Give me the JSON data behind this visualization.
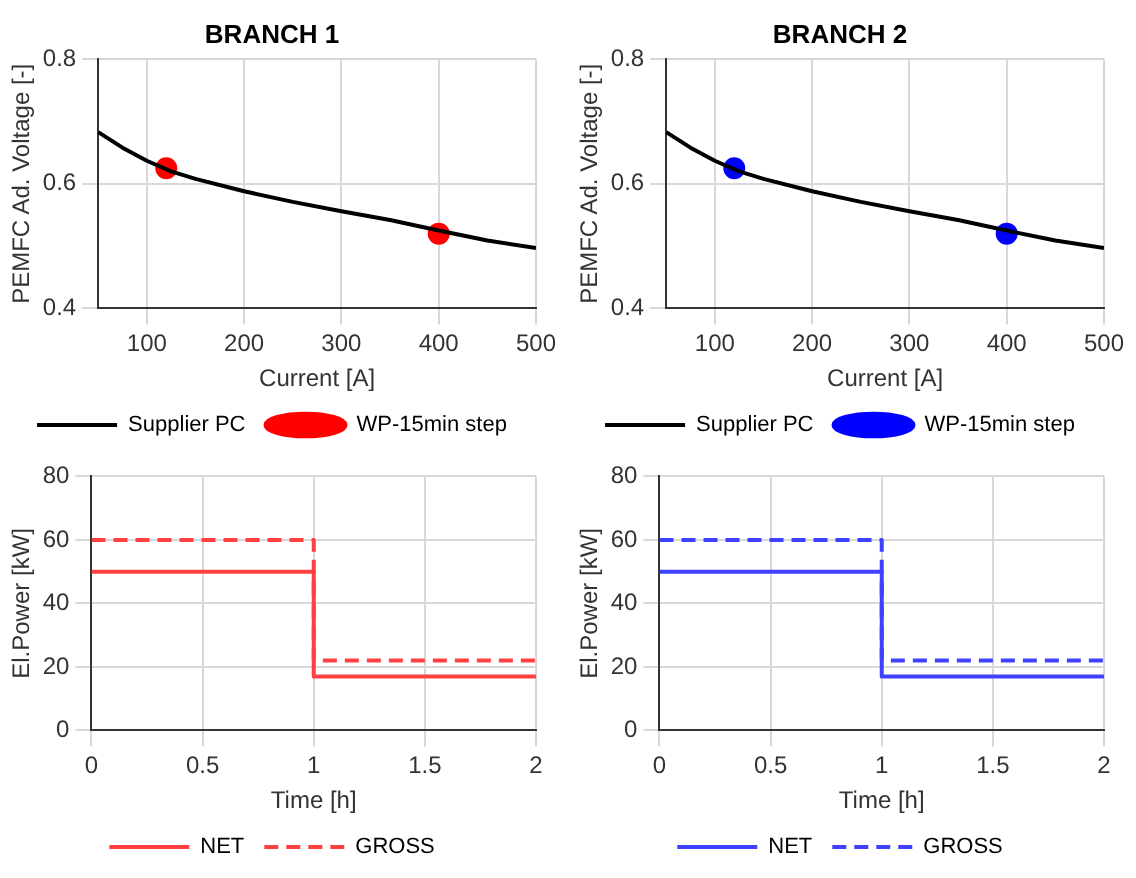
{
  "chart_data": [
    {
      "type": "line",
      "title": "BRANCH 1",
      "xlabel": "Current [A]",
      "ylabel": "PEMFC Ad. Voltage [-]",
      "xlim": [
        50,
        500
      ],
      "xticks": [
        100,
        200,
        300,
        400,
        500
      ],
      "ylim": [
        0.4,
        0.8
      ],
      "yticks": [
        0.4,
        0.6,
        0.8
      ],
      "grid": true,
      "legend": "bottom",
      "series": [
        {
          "name": "Supplier PC",
          "color": "#000000",
          "marker": "none",
          "x": [
            50,
            75,
            100,
            125,
            150,
            200,
            250,
            300,
            350,
            400,
            450,
            500
          ],
          "values": [
            0.683,
            0.658,
            0.637,
            0.62,
            0.608,
            0.588,
            0.571,
            0.556,
            0.542,
            0.525,
            0.509,
            0.497
          ]
        },
        {
          "name": "WP-15min step",
          "type": "scatter",
          "color": "#ff0000",
          "marker": "circle",
          "x": [
            120,
            400
          ],
          "values": [
            0.625,
            0.52
          ]
        }
      ]
    },
    {
      "type": "line",
      "title": "BRANCH 2",
      "xlabel": "Current [A]",
      "ylabel": "PEMFC Ad. Voltage [-]",
      "xlim": [
        50,
        500
      ],
      "xticks": [
        100,
        200,
        300,
        400,
        500
      ],
      "ylim": [
        0.4,
        0.8
      ],
      "yticks": [
        0.4,
        0.6,
        0.8
      ],
      "grid": true,
      "legend": "bottom",
      "series": [
        {
          "name": "Supplier PC",
          "color": "#000000",
          "marker": "none",
          "x": [
            50,
            75,
            100,
            125,
            150,
            200,
            250,
            300,
            350,
            400,
            450,
            500
          ],
          "values": [
            0.683,
            0.658,
            0.637,
            0.62,
            0.608,
            0.588,
            0.571,
            0.556,
            0.542,
            0.525,
            0.509,
            0.497
          ]
        },
        {
          "name": "WP-15min step",
          "type": "scatter",
          "color": "#0000ff",
          "marker": "circle",
          "x": [
            120,
            400
          ],
          "values": [
            0.625,
            0.52
          ]
        }
      ]
    },
    {
      "type": "step",
      "xlabel": "Time [h]",
      "ylabel": "El.Power [kW]",
      "xlim": [
        0,
        2
      ],
      "xticks": [
        0,
        0.5,
        1,
        1.5,
        2
      ],
      "ylim": [
        0,
        80
      ],
      "yticks": [
        0,
        20,
        40,
        60,
        80
      ],
      "grid": true,
      "legend": "bottom",
      "series": [
        {
          "name": "NET",
          "color": "#ff4040",
          "line_style": "solid",
          "x": [
            0,
            1,
            2
          ],
          "values": [
            50,
            17,
            17
          ]
        },
        {
          "name": "GROSS",
          "color": "#ff4040",
          "line_style": "dashed",
          "x": [
            0,
            1,
            2
          ],
          "values": [
            60,
            22,
            22
          ]
        }
      ]
    },
    {
      "type": "step",
      "xlabel": "Time [h]",
      "ylabel": "El.Power [kW]",
      "xlim": [
        0,
        2
      ],
      "xticks": [
        0,
        0.5,
        1,
        1.5,
        2
      ],
      "ylim": [
        0,
        80
      ],
      "yticks": [
        0,
        20,
        40,
        60,
        80
      ],
      "grid": true,
      "legend": "bottom",
      "series": [
        {
          "name": "NET",
          "color": "#4040ff",
          "line_style": "solid",
          "x": [
            0,
            1,
            2
          ],
          "values": [
            50,
            17,
            17
          ]
        },
        {
          "name": "GROSS",
          "color": "#4040ff",
          "line_style": "dashed",
          "x": [
            0,
            1,
            2
          ],
          "values": [
            60,
            22,
            22
          ]
        }
      ]
    }
  ]
}
